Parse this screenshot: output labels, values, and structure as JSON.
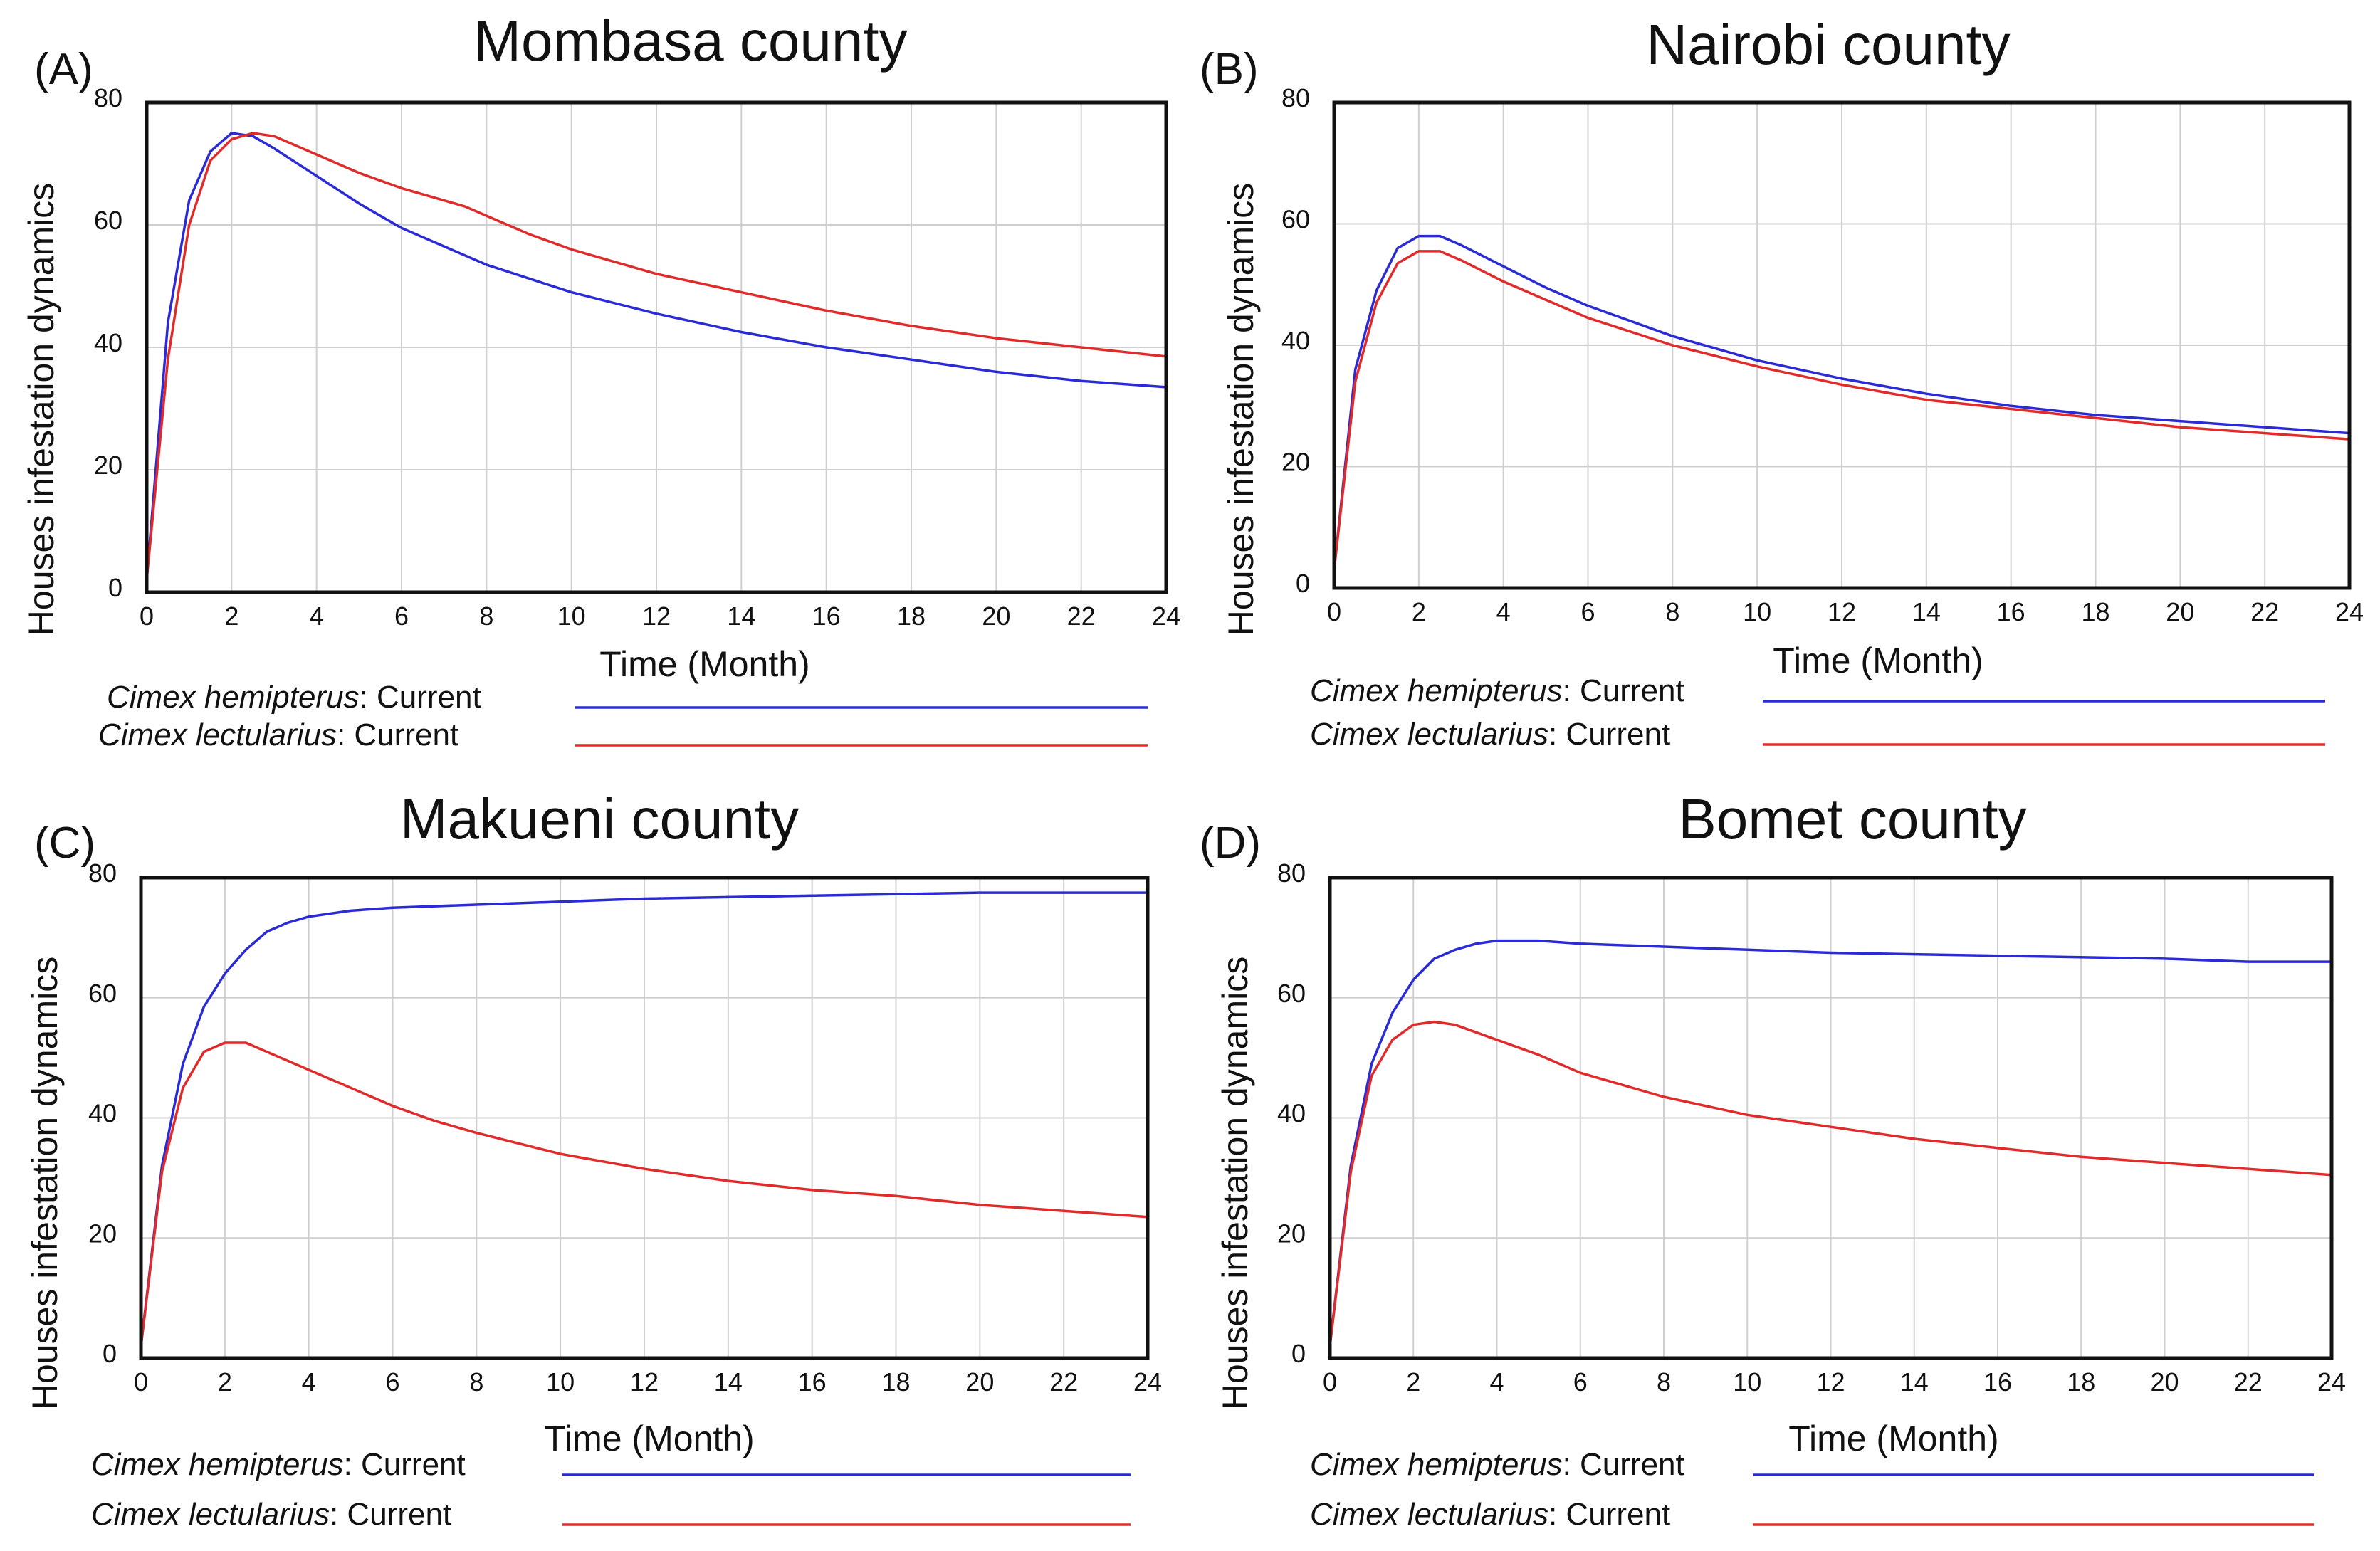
{
  "colors": {
    "hemipterus": "#2b2bd6",
    "lectularius": "#e02b2b",
    "grid": "#cfcfcf",
    "frame": "#111111"
  },
  "chart_data": [
    {
      "type": "line",
      "panel_label": "(A)",
      "title": "Mombasa county",
      "xlabel": "Time (Month)",
      "ylabel": "Houses infestation dynamics",
      "xlim": [
        0,
        24
      ],
      "ylim": [
        0,
        80
      ],
      "xticks": [
        "0",
        "2",
        "4",
        "6",
        "8",
        "10",
        "12",
        "14",
        "16",
        "18",
        "20",
        "22",
        "24"
      ],
      "yticks": [
        "0",
        "20",
        "40",
        "60",
        "80"
      ],
      "grid": true,
      "series": [
        {
          "name_italic": "Cimex hemipterus",
          "name_suffix": ": Current",
          "color_key": "hemipterus",
          "x": [
            0,
            0.5,
            1,
            1.5,
            2,
            2.5,
            3,
            4,
            5,
            6,
            7,
            8,
            10,
            12,
            14,
            16,
            18,
            20,
            22,
            24
          ],
          "y": [
            2,
            44,
            64,
            72,
            75,
            74.5,
            72.5,
            68,
            63.5,
            59.5,
            56.5,
            53.5,
            49,
            45.5,
            42.5,
            40,
            38,
            36,
            34.5,
            33.5
          ]
        },
        {
          "name_italic": "Cimex lectularius",
          "name_suffix": ": Current",
          "color_key": "lectularius",
          "x": [
            0,
            0.5,
            1,
            1.5,
            2,
            2.5,
            3,
            4,
            5,
            6,
            7,
            7.5,
            8,
            9,
            10,
            12,
            14,
            16,
            18,
            20,
            22,
            24
          ],
          "y": [
            2,
            38,
            60,
            70.5,
            74,
            75,
            74.5,
            71.5,
            68.5,
            66,
            64,
            63,
            61.5,
            58.5,
            56,
            52,
            49,
            46,
            43.5,
            41.5,
            40,
            38.5
          ]
        }
      ]
    },
    {
      "type": "line",
      "panel_label": "(B)",
      "title": "Nairobi county",
      "xlabel": "Time (Month)",
      "ylabel": "Houses infestation dynamics",
      "xlim": [
        0,
        24
      ],
      "ylim": [
        0,
        80
      ],
      "xticks": [
        "0",
        "2",
        "4",
        "6",
        "8",
        "10",
        "12",
        "14",
        "16",
        "18",
        "20",
        "22",
        "24"
      ],
      "yticks": [
        "0",
        "20",
        "40",
        "60",
        "80"
      ],
      "grid": true,
      "series": [
        {
          "name_italic": "Cimex hemipterus",
          "name_suffix": ": Current",
          "color_key": "hemipterus",
          "x": [
            0,
            0.5,
            1,
            1.5,
            2,
            2.5,
            3,
            4,
            5,
            6,
            8,
            10,
            12,
            14,
            16,
            18,
            20,
            22,
            24
          ],
          "y": [
            3,
            36,
            49,
            56,
            58,
            58,
            56.5,
            53,
            49.5,
            46.5,
            41.5,
            37.5,
            34.5,
            32,
            30,
            28.5,
            27.5,
            26.5,
            25.5
          ]
        },
        {
          "name_italic": "Cimex lectularius",
          "name_suffix": ": Current",
          "color_key": "lectularius",
          "x": [
            0,
            0.5,
            1,
            1.5,
            2,
            2.5,
            3,
            4,
            5,
            6,
            8,
            10,
            12,
            14,
            16,
            18,
            20,
            22,
            24
          ],
          "y": [
            3,
            34,
            47,
            53.5,
            55.5,
            55.5,
            54,
            50.5,
            47.5,
            44.5,
            40,
            36.5,
            33.5,
            31,
            29.5,
            28,
            26.5,
            25.5,
            24.5
          ]
        }
      ]
    },
    {
      "type": "line",
      "panel_label": "(C)",
      "title": "Makueni county",
      "xlabel": "Time (Month)",
      "ylabel": "Houses infestation dynamics",
      "xlim": [
        0,
        24
      ],
      "ylim": [
        0,
        80
      ],
      "xticks": [
        "0",
        "2",
        "4",
        "6",
        "8",
        "10",
        "12",
        "14",
        "16",
        "18",
        "20",
        "22",
        "24"
      ],
      "yticks": [
        "0",
        "20",
        "40",
        "60",
        "80"
      ],
      "grid": true,
      "series": [
        {
          "name_italic": "Cimex hemipterus",
          "name_suffix": ": Current",
          "color_key": "hemipterus",
          "x": [
            0,
            0.5,
            1,
            1.5,
            2,
            2.5,
            3,
            3.5,
            4,
            5,
            6,
            8,
            10,
            12,
            16,
            20,
            24
          ],
          "y": [
            2,
            32,
            49,
            58.5,
            64,
            68,
            71,
            72.5,
            73.5,
            74.5,
            75,
            75.5,
            76,
            76.5,
            77,
            77.5,
            77.5
          ]
        },
        {
          "name_italic": "Cimex lectularius",
          "name_suffix": ": Current",
          "color_key": "lectularius",
          "x": [
            0,
            0.5,
            1,
            1.5,
            2,
            2.5,
            3,
            4,
            5,
            6,
            7,
            8,
            10,
            12,
            14,
            16,
            18,
            20,
            22,
            24
          ],
          "y": [
            2,
            31,
            45,
            51,
            52.5,
            52.5,
            51,
            48,
            45,
            42,
            39.5,
            37.5,
            34,
            31.5,
            29.5,
            28,
            27,
            25.5,
            24.5,
            23.5
          ]
        }
      ]
    },
    {
      "type": "line",
      "panel_label": "(D)",
      "title": "Bomet county",
      "xlabel": "Time (Month)",
      "ylabel": "Houses infestation dynamics",
      "xlim": [
        0,
        24
      ],
      "ylim": [
        0,
        80
      ],
      "xticks": [
        "0",
        "2",
        "4",
        "6",
        "8",
        "10",
        "12",
        "14",
        "16",
        "18",
        "20",
        "22",
        "24"
      ],
      "yticks": [
        "0",
        "20",
        "40",
        "60",
        "80"
      ],
      "grid": true,
      "series": [
        {
          "name_italic": "Cimex hemipterus",
          "name_suffix": ": Current",
          "color_key": "hemipterus",
          "x": [
            0,
            0.5,
            1,
            1.5,
            2,
            2.5,
            3,
            3.5,
            4,
            5,
            6,
            8,
            10,
            12,
            16,
            20,
            22,
            24
          ],
          "y": [
            2,
            32,
            49,
            57.5,
            63,
            66.5,
            68,
            69,
            69.5,
            69.5,
            69,
            68.5,
            68,
            67.5,
            67,
            66.5,
            66,
            66
          ]
        },
        {
          "name_italic": "Cimex lectularius",
          "name_suffix": ": Current",
          "color_key": "lectularius",
          "x": [
            0,
            0.5,
            1,
            1.5,
            2,
            2.5,
            3,
            4,
            5,
            6,
            7,
            8,
            10,
            12,
            14,
            16,
            18,
            20,
            22,
            24
          ],
          "y": [
            2,
            31,
            47,
            53,
            55.5,
            56,
            55.5,
            53,
            50.5,
            47.5,
            45.5,
            43.5,
            40.5,
            38.5,
            36.5,
            35,
            33.5,
            32.5,
            31.5,
            30.5
          ]
        }
      ]
    }
  ]
}
